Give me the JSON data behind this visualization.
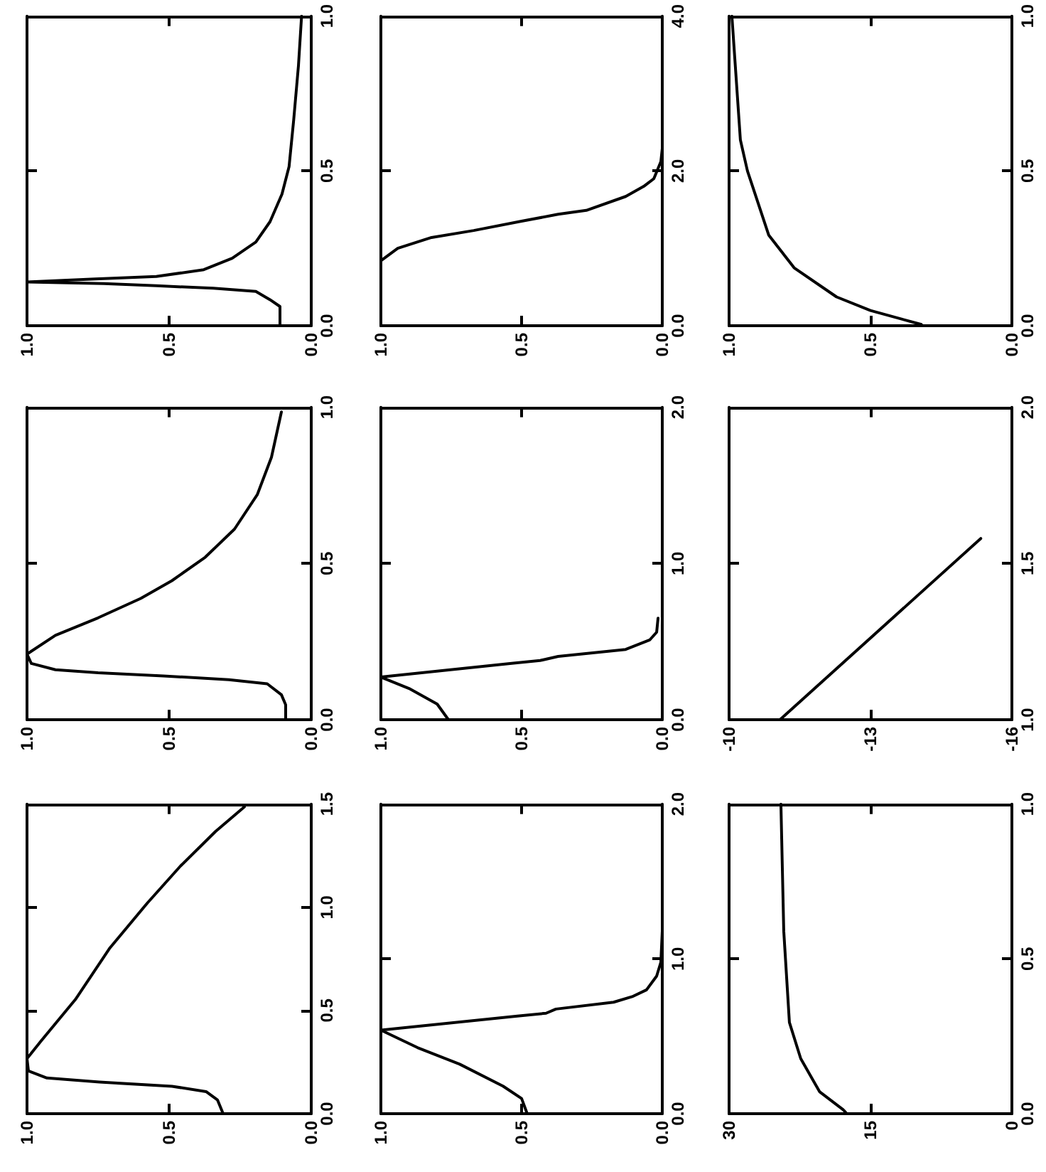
{
  "chart_data": [
    {
      "type": "line",
      "color": "#000000",
      "marker": "none",
      "xlim": [
        1,
        0
      ],
      "xticks": [
        {
          "value": 1,
          "label": "1.0"
        },
        {
          "value": 0.5,
          "label": "0.5"
        },
        {
          "value": 0,
          "label": "0.0"
        }
      ],
      "ylim": [
        0,
        1
      ],
      "yticks": [
        {
          "value": 0,
          "label": "0.0"
        },
        {
          "value": 0.5,
          "label": "0.5"
        },
        {
          "value": 1,
          "label": "1.0"
        }
      ],
      "x": [
        0.11,
        0.11,
        0.145,
        0.195,
        0.345,
        0.545,
        0.73,
        1.0,
        0.76,
        0.545,
        0.378,
        0.278,
        0.195,
        0.145,
        0.103,
        0.078,
        0.062,
        0.045,
        0.034
      ],
      "values": [
        0,
        0.062,
        0.084,
        0.111,
        0.121,
        0.129,
        0.136,
        0.141,
        0.151,
        0.159,
        0.181,
        0.218,
        0.27,
        0.336,
        0.425,
        0.514,
        0.662,
        0.84,
        1.0
      ]
    },
    {
      "type": "line",
      "color": "#000000",
      "marker": "none",
      "xlim": [
        1,
        0
      ],
      "xticks": [
        {
          "value": 1,
          "label": "1.0"
        },
        {
          "value": 0.5,
          "label": "0.5"
        },
        {
          "value": 0,
          "label": "0.0"
        }
      ],
      "ylim": [
        0,
        4
      ],
      "yticks": [
        {
          "value": 0,
          "label": "0.0"
        },
        {
          "value": 2,
          "label": "2.0"
        },
        {
          "value": 4,
          "label": "4.0"
        }
      ],
      "x": [
        1.0,
        1.0,
        0.94,
        0.82,
        0.67,
        0.5,
        0.37,
        0.27,
        0.13,
        0.066,
        0.03,
        0.005,
        0
      ],
      "values": [
        0,
        0.84,
        1.0,
        1.14,
        1.23,
        1.35,
        1.44,
        1.49,
        1.67,
        1.8,
        1.9,
        2.12,
        2.29
      ]
    },
    {
      "type": "line",
      "color": "#000000",
      "marker": "none",
      "xlim": [
        1,
        0
      ],
      "xticks": [
        {
          "value": 1,
          "label": "1.0"
        },
        {
          "value": 0.5,
          "label": "0.5"
        },
        {
          "value": 0,
          "label": "0.0"
        }
      ],
      "ylim": [
        0,
        1
      ],
      "yticks": [
        {
          "value": 0,
          "label": "0.0"
        },
        {
          "value": 0.5,
          "label": "0.5"
        },
        {
          "value": 1,
          "label": "1.0"
        }
      ],
      "x": [
        0.99,
        0.96,
        0.935,
        0.86,
        0.77,
        0.62,
        0.5,
        0.32
      ],
      "values": [
        1.0,
        0.6,
        0.5,
        0.293,
        0.187,
        0.093,
        0.049,
        0.004
      ]
    },
    {
      "type": "line",
      "color": "#000000",
      "marker": "none",
      "xlim": [
        1,
        0
      ],
      "xticks": [
        {
          "value": 1,
          "label": "1.0"
        },
        {
          "value": 0.5,
          "label": "0.5"
        },
        {
          "value": 0,
          "label": "0.0"
        }
      ],
      "ylim": [
        0,
        1
      ],
      "yticks": [
        {
          "value": 0,
          "label": "0.0"
        },
        {
          "value": 0.5,
          "label": "0.5"
        },
        {
          "value": 1,
          "label": "1.0"
        }
      ],
      "x": [
        0.09,
        0.09,
        0.105,
        0.155,
        0.29,
        0.52,
        0.75,
        0.9,
        0.985,
        1.0,
        0.9,
        0.75,
        0.6,
        0.49,
        0.373,
        0.27,
        0.19,
        0.14,
        0.105
      ],
      "values": [
        0,
        0.048,
        0.08,
        0.115,
        0.128,
        0.14,
        0.15,
        0.16,
        0.18,
        0.21,
        0.27,
        0.326,
        0.388,
        0.445,
        0.52,
        0.61,
        0.72,
        0.84,
        0.985
      ]
    },
    {
      "type": "line",
      "color": "#000000",
      "marker": "none",
      "xlim": [
        1,
        0
      ],
      "xticks": [
        {
          "value": 1,
          "label": "1.0"
        },
        {
          "value": 0.5,
          "label": "0.5"
        },
        {
          "value": 0,
          "label": "0.0"
        }
      ],
      "ylim": [
        0,
        2
      ],
      "yticks": [
        {
          "value": 0,
          "label": "0.0"
        },
        {
          "value": 1,
          "label": "1.0"
        },
        {
          "value": 2,
          "label": "2.0"
        }
      ],
      "x": [
        0.76,
        0.8,
        0.9,
        1.0,
        0.535,
        0.434,
        0.37,
        0.13,
        0.045,
        0.02,
        0.015
      ],
      "values": [
        0,
        0.1,
        0.2,
        0.273,
        0.361,
        0.379,
        0.405,
        0.45,
        0.51,
        0.56,
        0.65
      ]
    },
    {
      "type": "line",
      "color": "#000000",
      "marker": "none",
      "xlim": [
        -10,
        -16
      ],
      "xticks": [
        -10,
        -13,
        -16
      ],
      "ylim": [
        1,
        2
      ],
      "yticks": [
        {
          "value": 1,
          "label": "1.0"
        },
        {
          "value": 1.5,
          "label": "1.5"
        },
        {
          "value": 2,
          "label": "2.0"
        }
      ],
      "x": [
        -11.08,
        -15.34
      ],
      "values": [
        1.0,
        1.58
      ]
    },
    {
      "type": "line",
      "color": "#000000",
      "marker": "none",
      "xlim": [
        1,
        0
      ],
      "xticks": [
        {
          "value": 1,
          "label": "1.0"
        },
        {
          "value": 0.5,
          "label": "0.5"
        },
        {
          "value": 0,
          "label": "0.0"
        }
      ],
      "ylim": [
        0,
        1.5
      ],
      "yticks": [
        {
          "value": 0,
          "label": "0.0"
        },
        {
          "value": 0.5,
          "label": "0.5"
        },
        {
          "value": 1,
          "label": "1.0"
        },
        {
          "value": 1.5,
          "label": "1.5"
        }
      ],
      "x": [
        0.31,
        0.33,
        0.37,
        0.49,
        0.745,
        0.93,
        0.995,
        1.0,
        0.95,
        0.83,
        0.71,
        0.577,
        0.46,
        0.337,
        0.235
      ],
      "values": [
        0,
        0.067,
        0.107,
        0.133,
        0.153,
        0.173,
        0.207,
        0.267,
        0.353,
        0.553,
        0.8,
        1.02,
        1.2,
        1.367,
        1.487
      ]
    },
    {
      "type": "line",
      "color": "#000000",
      "marker": "none",
      "xlim": [
        1,
        0
      ],
      "xticks": [
        {
          "value": 1,
          "label": "1.0"
        },
        {
          "value": 0.5,
          "label": "0.5"
        },
        {
          "value": 0,
          "label": "0.0"
        }
      ],
      "ylim": [
        0,
        2
      ],
      "yticks": [
        {
          "value": 0,
          "label": "0.0"
        },
        {
          "value": 1,
          "label": "1.0"
        },
        {
          "value": 2,
          "label": "2.0"
        }
      ],
      "x": [
        0.48,
        0.5,
        0.566,
        0.72,
        0.87,
        1.0,
        0.515,
        0.413,
        0.378,
        0.173,
        0.107,
        0.056,
        0.02,
        0.005,
        0
      ],
      "values": [
        0,
        0.098,
        0.178,
        0.32,
        0.427,
        0.54,
        0.631,
        0.649,
        0.676,
        0.72,
        0.756,
        0.8,
        0.889,
        0.978,
        1.18
      ]
    },
    {
      "type": "line",
      "color": "#000000",
      "marker": "none",
      "xlim": [
        30,
        0
      ],
      "xticks": [
        30,
        15,
        0
      ],
      "ylim": [
        0,
        1
      ],
      "yticks": [
        {
          "value": 0,
          "label": "0.0"
        },
        {
          "value": 0.5,
          "label": "0.5"
        },
        {
          "value": 1,
          "label": "1.0"
        }
      ],
      "x": [
        24.5,
        24.2,
        23.6,
        22.4,
        20.4,
        17.9,
        17.5
      ],
      "values": [
        1.0,
        0.59,
        0.295,
        0.178,
        0.071,
        0.013,
        0
      ]
    }
  ]
}
